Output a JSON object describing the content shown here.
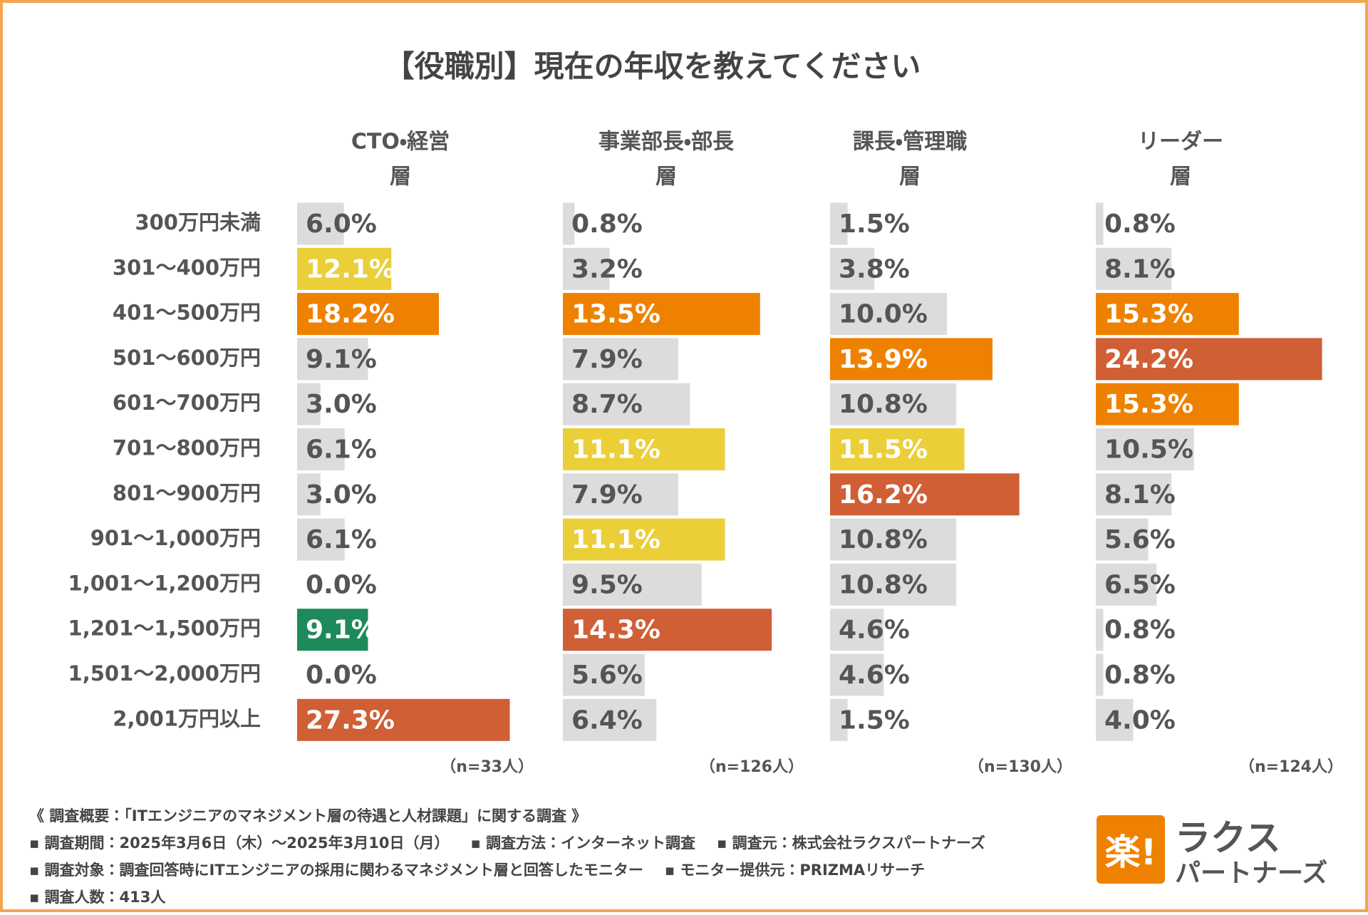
{
  "title": "【役職別】現在の年収を教えてください",
  "chart_data": [
    {
      "type": "bar",
      "orientation": "horizontal",
      "title_lines": [
        "CTO・経営",
        "層"
      ],
      "note": "（n=33人）",
      "categories": [
        "300万円未満",
        "301〜400万円",
        "401〜500万円",
        "501〜600万円",
        "601〜700万円",
        "701〜800万円",
        "801〜900万円",
        "901〜1,000万円",
        "1,001〜1,200万円",
        "1,201〜1,500万円",
        "1,501〜2,000万円",
        "2,001万円以上"
      ],
      "values": [
        6.0,
        12.1,
        18.2,
        9.1,
        3.0,
        6.1,
        3.0,
        6.1,
        0.0,
        9.1,
        0.0,
        27.3
      ],
      "value_labels": [
        "6.0%",
        "12.1%",
        "18.2%",
        "9.1%",
        "3.0%",
        "6.1%",
        "3.0%",
        "6.1%",
        "0.0%",
        "9.1%",
        "0.0%",
        "27.3%"
      ],
      "colors": [
        "#dcdcdc",
        "#ebcf39",
        "#ee8200",
        "#dcdcdc",
        "#dcdcdc",
        "#dcdcdc",
        "#dcdcdc",
        "#dcdcdc",
        "#dcdcdc",
        "#1e8a5b",
        "#dcdcdc",
        "#d05f35"
      ],
      "xlim": [
        0,
        30
      ]
    },
    {
      "type": "bar",
      "orientation": "horizontal",
      "title_lines": [
        "事業部長・部長",
        "層"
      ],
      "note": "（n=126人）",
      "values": [
        0.8,
        3.2,
        13.5,
        7.9,
        8.7,
        11.1,
        7.9,
        11.1,
        9.5,
        14.3,
        5.6,
        6.4
      ],
      "value_labels": [
        "0.8%",
        "3.2%",
        "13.5%",
        "7.9%",
        "8.7%",
        "11.1%",
        "7.9%",
        "11.1%",
        "9.5%",
        "14.3%",
        "5.6%",
        "6.4%"
      ],
      "colors": [
        "#dcdcdc",
        "#dcdcdc",
        "#ee8200",
        "#dcdcdc",
        "#dcdcdc",
        "#ebcf39",
        "#dcdcdc",
        "#ebcf39",
        "#dcdcdc",
        "#d05f35",
        "#dcdcdc",
        "#dcdcdc"
      ],
      "xlim": [
        0,
        16
      ]
    },
    {
      "type": "bar",
      "orientation": "horizontal",
      "title_lines": [
        "課長・管理職",
        "層"
      ],
      "note": "（n=130人）",
      "values": [
        1.5,
        3.8,
        10.0,
        13.9,
        10.8,
        11.5,
        16.2,
        10.8,
        10.8,
        4.6,
        4.6,
        1.5
      ],
      "value_labels": [
        "1.5%",
        "3.8%",
        "10.0%",
        "13.9%",
        "10.8%",
        "11.5%",
        "16.2%",
        "10.8%",
        "10.8%",
        "4.6%",
        "4.6%",
        "1.5%"
      ],
      "colors": [
        "#dcdcdc",
        "#dcdcdc",
        "#dcdcdc",
        "#ee8200",
        "#dcdcdc",
        "#ebcf39",
        "#d05f35",
        "#dcdcdc",
        "#dcdcdc",
        "#dcdcdc",
        "#dcdcdc",
        "#dcdcdc"
      ],
      "xlim": [
        0,
        20
      ]
    },
    {
      "type": "bar",
      "orientation": "horizontal",
      "title_lines": [
        "リーダー",
        "層"
      ],
      "note": "（n=124人）",
      "values": [
        0.8,
        8.1,
        15.3,
        24.2,
        15.3,
        10.5,
        8.1,
        5.6,
        6.5,
        0.8,
        0.8,
        4.0
      ],
      "value_labels": [
        "0.8%",
        "8.1%",
        "15.3%",
        "24.2%",
        "15.3%",
        "10.5%",
        "8.1%",
        "5.6%",
        "6.5%",
        "0.8%",
        "0.8%",
        "4.0%"
      ],
      "colors": [
        "#dcdcdc",
        "#dcdcdc",
        "#ee8200",
        "#d05f35",
        "#ee8200",
        "#dcdcdc",
        "#dcdcdc",
        "#dcdcdc",
        "#dcdcdc",
        "#dcdcdc",
        "#dcdcdc",
        "#dcdcdc"
      ],
      "xlim": [
        0,
        25
      ]
    }
  ],
  "base_color": "#dcdcdc",
  "footer": [
    [
      "《 調査概要：「ITエンジニアのマネジメント層の待遇と人材課題」に関する調査 》"
    ],
    [
      "▪ 調査期間：2025年3月6日（木）〜2025年3月10日（月）",
      "▪ 調査方法：インターネット調査",
      "▪ 調査元：株式会社ラクスパートナーズ"
    ],
    [
      "▪ 調査対象：調査回答時にITエンジニアの採用に関わるマネジメント層と回答したモニター",
      "▪ モニター提供元：PRIZMAリサーチ"
    ],
    [
      "▪ 調査人数：413人"
    ]
  ],
  "logo": {
    "mark": "楽!",
    "name": "ラクス",
    "sub": "パートナーズ"
  }
}
